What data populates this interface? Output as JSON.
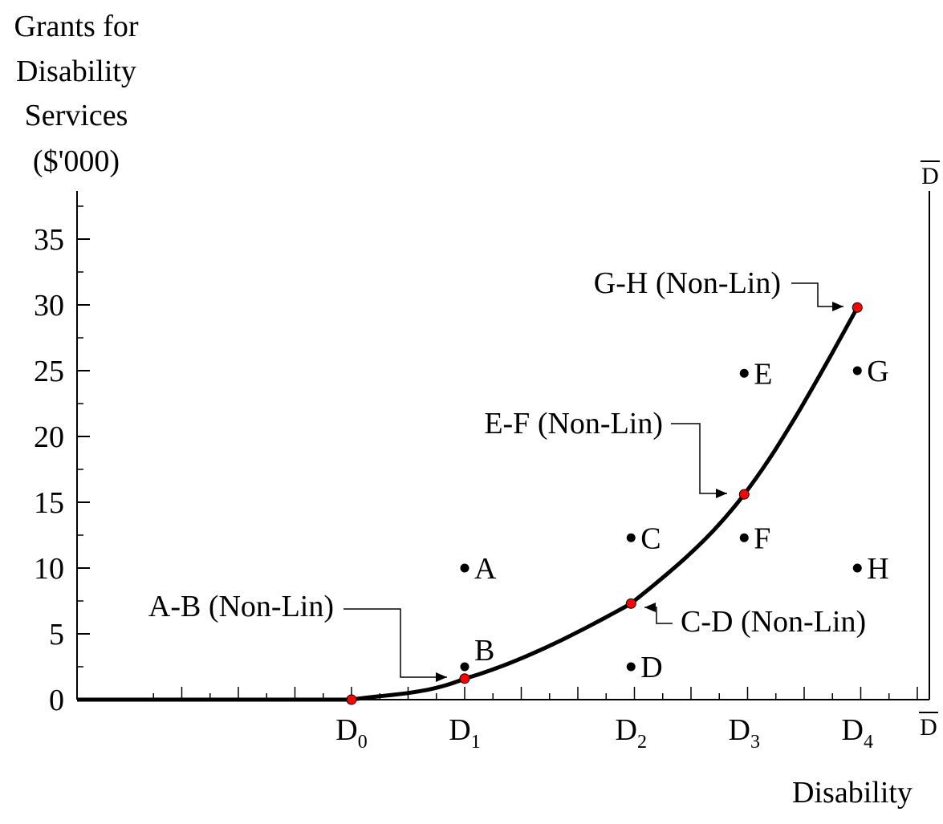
{
  "chart_data": {
    "type": "line",
    "ylabel_lines": [
      "Grants for",
      "Disability",
      "Services",
      "($'000)"
    ],
    "xlabel": "Disability",
    "yticks": [
      0,
      5,
      10,
      15,
      20,
      25,
      30,
      35
    ],
    "ylim": [
      0,
      38
    ],
    "x_categories": [
      {
        "main": "D",
        "sub": "0",
        "x": 0
      },
      {
        "main": "D",
        "sub": "1",
        "x": 1
      },
      {
        "main": "D",
        "sub": "2",
        "x": 2.47
      },
      {
        "main": "D",
        "sub": "3",
        "x": 3.47
      },
      {
        "main": "D",
        "sub": "4",
        "x": 4.47
      }
    ],
    "xlim": [
      -2.47,
      5
    ],
    "d_bar_label": "D",
    "points": [
      {
        "label": "A",
        "x": 1,
        "y": 10
      },
      {
        "label": "B",
        "x": 1,
        "y": 2.5
      },
      {
        "label": "C",
        "x": 2.47,
        "y": 12.3
      },
      {
        "label": "D",
        "x": 2.47,
        "y": 2.5
      },
      {
        "label": "E",
        "x": 3.47,
        "y": 24.8
      },
      {
        "label": "F",
        "x": 3.47,
        "y": 12.3
      },
      {
        "label": "G",
        "x": 4.47,
        "y": 25
      },
      {
        "label": "H",
        "x": 4.47,
        "y": 10
      }
    ],
    "curve_points": [
      {
        "x": 0,
        "y": 0
      },
      {
        "x": 1,
        "y": 1.6
      },
      {
        "x": 2.47,
        "y": 7.3
      },
      {
        "x": 3.47,
        "y": 15.6
      },
      {
        "x": 4.47,
        "y": 29.8
      }
    ],
    "annotations": [
      {
        "text": "A-B (Non-Lin)",
        "x": 1,
        "y": 1.6
      },
      {
        "text": "C-D (Non-Lin)",
        "x": 2.47,
        "y": 7.3
      },
      {
        "text": "E-F (Non-Lin)",
        "x": 3.47,
        "y": 15.6
      },
      {
        "text": "G-H (Non-Lin)",
        "x": 4.47,
        "y": 29.8
      }
    ],
    "colors": {
      "curve": "#000000",
      "marker": "#ff0000",
      "points": "#000000"
    }
  }
}
